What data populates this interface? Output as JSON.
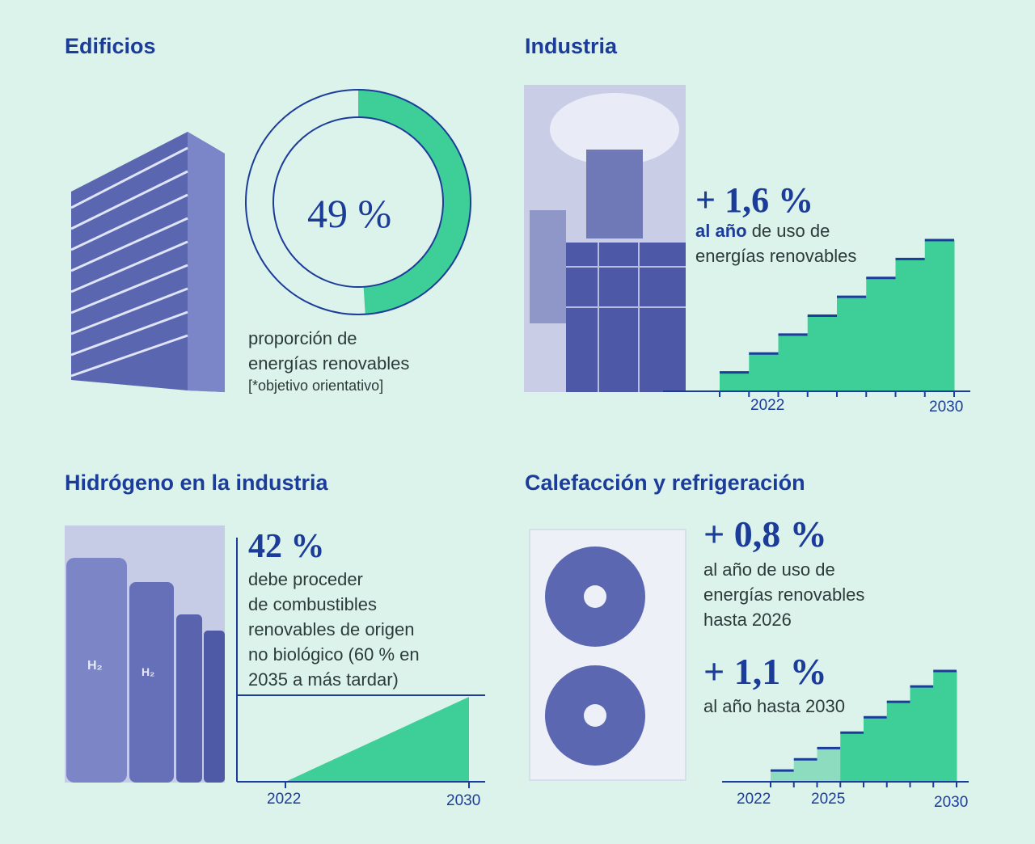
{
  "colors": {
    "background": "#dcf3eb",
    "accent": "#3ecf98",
    "accent_light": "#8edcbf",
    "text_blue": "#1c3c9a"
  },
  "edificios": {
    "title": "Edificios",
    "value": "49 %",
    "caption1": "proporción de",
    "caption2": "energías renovables",
    "note": "[*objetivo orientativo]",
    "image": "office-building-photo"
  },
  "industria": {
    "title": "Industria",
    "value": "+ 1,6 %",
    "caption_bold": "al año",
    "caption_rest": " de uso de",
    "caption2": "energías renovables",
    "image": "industrial-chimney-photo"
  },
  "hidrogeno": {
    "title": "Hidrógeno en la industria",
    "value": "42 %",
    "lines": [
      "debe proceder",
      "de combustibles",
      "renovables de origen",
      "no biológico (60 % en",
      "2035 a más tardar)"
    ],
    "image": "hydrogen-tanks-photo",
    "tank_label": "H₂"
  },
  "calefaccion": {
    "title": "Calefacción y refrigeración",
    "value1": "+ 0,8 %",
    "lines1": [
      "al año de uso de",
      "energías renovables",
      "hasta 2026"
    ],
    "value2": "+ 1,1 %",
    "line2": "al año hasta 2030",
    "image": "air-conditioner-unit-photo"
  },
  "chart_data": [
    {
      "type": "pie",
      "variant": "donut",
      "values": [
        49,
        51
      ],
      "label": "49 %"
    },
    {
      "type": "bar",
      "variant": "step",
      "annual_increase_pct": 1.6,
      "x_ticks": [
        "2022",
        "2030"
      ],
      "values": [
        1.6,
        3.2,
        4.8,
        6.4,
        8.0,
        9.6,
        11.2,
        12.8
      ]
    },
    {
      "type": "area",
      "x": [
        2022,
        2030
      ],
      "y": [
        0,
        42
      ],
      "x_ticks": [
        "2022",
        "2030"
      ],
      "target_pct": 42
    },
    {
      "type": "bar",
      "variant": "step",
      "x_ticks": [
        "2022",
        "2025",
        "2030"
      ],
      "values": [
        0.8,
        1.6,
        2.4,
        3.5,
        4.6,
        5.7,
        6.8,
        7.9
      ],
      "series_phase": [
        "0.8",
        "0.8",
        "0.8",
        "1.1",
        "1.1",
        "1.1",
        "1.1",
        "1.1"
      ]
    }
  ]
}
